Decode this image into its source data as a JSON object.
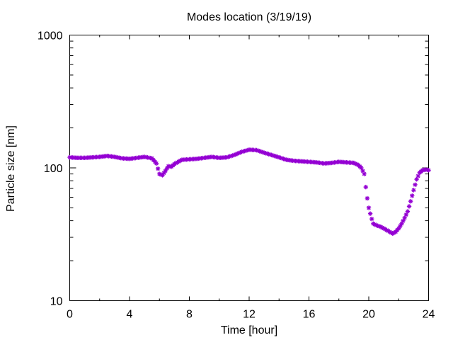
{
  "chart_data": {
    "type": "scatter",
    "title": "Modes location (3/19/19)",
    "xlabel": "Time [hour]",
    "ylabel": "Particle size [nm]",
    "xlim": [
      0,
      24
    ],
    "ylim": [
      10,
      1000
    ],
    "yscale": "log",
    "xticks": [
      0,
      4,
      8,
      12,
      16,
      20,
      24
    ],
    "xtick_labels": [
      "0",
      "4",
      "8",
      "12",
      "16",
      "20",
      "24"
    ],
    "yticks": [
      10,
      100,
      1000
    ],
    "ytick_labels": [
      "10",
      "100",
      "1000"
    ],
    "grid": false,
    "legend": "none",
    "marker": "asterisk",
    "color": "#9400d3",
    "series": [
      {
        "x": [
          0,
          0.5,
          1,
          1.5,
          2,
          2.5,
          3,
          3.5,
          4,
          4.5,
          5,
          5.5,
          5.8,
          6,
          6.2,
          6.4,
          6.6,
          6.8,
          7,
          7.5,
          8,
          8.5,
          9,
          9.5,
          10,
          10.5,
          11,
          11.5,
          12,
          12.5,
          13,
          13.5,
          14,
          14.5,
          15,
          15.5,
          16,
          16.5,
          17,
          17.5,
          18,
          18.5,
          19,
          19.3,
          19.5,
          19.7,
          19.85,
          20,
          20.15,
          20.3,
          20.5,
          20.8,
          21,
          21.2,
          21.4,
          21.6,
          21.8,
          22,
          22.2,
          22.4,
          22.6,
          22.8,
          23,
          23.2,
          23.4,
          23.6,
          23.8,
          24
        ],
        "y": [
          120,
          119,
          119,
          120,
          121,
          123,
          121,
          118,
          117,
          119,
          121,
          118,
          108,
          90,
          88,
          95,
          103,
          102,
          107,
          115,
          116,
          117,
          119,
          121,
          119,
          120,
          125,
          132,
          137,
          136,
          130,
          125,
          120,
          115,
          113,
          112,
          111,
          110,
          108,
          109,
          111,
          110,
          109,
          105,
          100,
          90,
          64,
          50,
          43,
          38,
          37,
          36,
          35,
          34,
          33,
          32,
          33,
          35,
          38,
          42,
          47,
          56,
          68,
          82,
          92,
          96,
          97,
          96
        ]
      }
    ]
  }
}
